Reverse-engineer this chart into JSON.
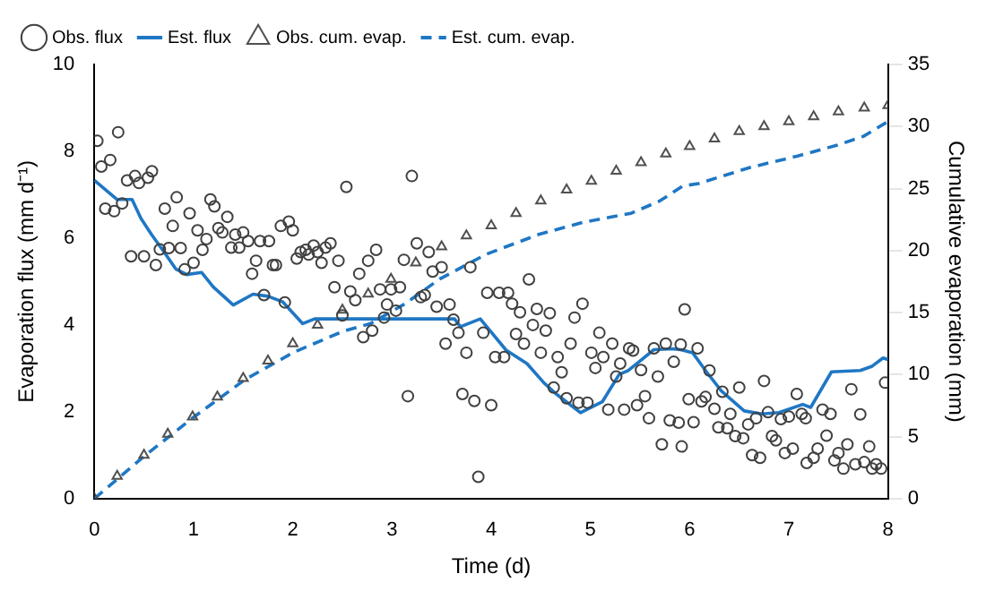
{
  "chart_data": {
    "type": "scatter",
    "xlabel": "Time (d)",
    "ylabel": "Evaporation flux (mm d⁻¹)",
    "y2label": "Cumulative evaporation (mm)",
    "xlim": [
      0,
      8
    ],
    "xticks": [
      0,
      1,
      2,
      3,
      4,
      5,
      6,
      7,
      8
    ],
    "ylim": [
      0,
      10
    ],
    "yticks": [
      0,
      2,
      4,
      6,
      8,
      10
    ],
    "y2lim": [
      0,
      35
    ],
    "y2ticks": [
      0,
      5,
      10,
      15,
      20,
      25,
      30,
      35
    ],
    "legend": "top left",
    "grid": false,
    "series": [
      {
        "name": "Obs. flux",
        "marker": "circle",
        "color": "#404040",
        "x": [
          0.03,
          0.07,
          0.16,
          0.24,
          0.11,
          0.2,
          0.28,
          0.33,
          0.41,
          0.45,
          0.54,
          0.58,
          0.37,
          0.5,
          0.62,
          0.66,
          0.71,
          0.75,
          0.79,
          0.83,
          0.87,
          0.91,
          0.96,
          1.0,
          1.04,
          1.09,
          1.13,
          1.17,
          1.21,
          1.25,
          1.29,
          1.34,
          1.38,
          1.42,
          1.46,
          1.5,
          1.55,
          1.59,
          1.63,
          1.67,
          1.71,
          1.76,
          1.8,
          1.83,
          1.88,
          1.92,
          1.96,
          2.0,
          2.04,
          2.08,
          2.13,
          2.16,
          2.21,
          2.25,
          2.29,
          2.33,
          2.38,
          2.42,
          2.46,
          2.5,
          2.54,
          2.58,
          2.63,
          2.67,
          2.71,
          2.76,
          2.8,
          2.84,
          2.88,
          2.92,
          2.95,
          2.99,
          3.04,
          3.08,
          3.12,
          3.16,
          3.2,
          3.25,
          3.29,
          3.33,
          3.37,
          3.41,
          3.45,
          3.5,
          3.54,
          3.58,
          3.62,
          3.67,
          3.71,
          3.75,
          3.79,
          3.83,
          3.87,
          3.92,
          3.96,
          4.0,
          4.04,
          4.08,
          4.13,
          4.17,
          4.21,
          4.25,
          4.29,
          4.33,
          4.38,
          4.42,
          4.46,
          4.5,
          4.55,
          4.59,
          4.63,
          4.67,
          4.71,
          4.76,
          4.8,
          4.84,
          4.88,
          4.92,
          4.97,
          5.01,
          5.05,
          5.09,
          5.13,
          5.18,
          5.22,
          5.26,
          5.3,
          5.34,
          5.39,
          5.43,
          5.47,
          5.51,
          5.55,
          5.59,
          5.64,
          5.68,
          5.72,
          5.76,
          5.8,
          5.84,
          5.89,
          5.91,
          5.92,
          5.95,
          5.99,
          6.04,
          6.08,
          6.12,
          6.16,
          6.2,
          6.25,
          6.29,
          6.33,
          6.38,
          6.41,
          6.46,
          6.5,
          6.54,
          6.59,
          6.63,
          6.67,
          6.71,
          6.75,
          6.79,
          6.83,
          6.87,
          6.92,
          6.96,
          7.0,
          7.04,
          7.08,
          7.13,
          7.17,
          7.18,
          7.25,
          7.29,
          7.34,
          7.38,
          7.42,
          7.46,
          7.5,
          7.55,
          7.59,
          7.63,
          7.67,
          7.72,
          7.76,
          7.81,
          7.84,
          7.88,
          7.93,
          7.97
        ],
        "values": [
          8.24,
          7.65,
          7.8,
          8.44,
          6.68,
          6.62,
          6.8,
          7.33,
          7.43,
          7.27,
          7.39,
          7.54,
          5.58,
          5.58,
          5.38,
          5.74,
          6.68,
          5.77,
          6.28,
          6.94,
          5.77,
          5.28,
          6.57,
          5.43,
          6.18,
          5.73,
          5.98,
          6.89,
          6.73,
          6.23,
          6.13,
          6.49,
          5.78,
          6.08,
          5.78,
          6.13,
          5.93,
          5.18,
          5.48,
          5.93,
          4.69,
          5.93,
          5.38,
          5.38,
          6.28,
          4.52,
          6.38,
          6.18,
          5.53,
          5.68,
          5.73,
          5.62,
          5.83,
          5.68,
          5.43,
          5.78,
          5.88,
          4.87,
          5.48,
          4.22,
          7.18,
          4.77,
          4.57,
          5.18,
          3.72,
          5.48,
          3.87,
          5.73,
          4.82,
          4.17,
          4.47,
          4.82,
          4.33,
          4.87,
          5.5,
          2.36,
          7.43,
          5.88,
          4.64,
          4.69,
          5.68,
          5.23,
          4.42,
          5.33,
          3.57,
          4.47,
          4.12,
          3.82,
          2.41,
          3.36,
          5.33,
          2.25,
          0.5,
          3.82,
          4.74,
          2.15,
          3.26,
          4.74,
          3.26,
          4.74,
          4.49,
          3.79,
          4.29,
          3.57,
          5.05,
          4.0,
          4.37,
          3.36,
          3.87,
          4.27,
          2.56,
          3.26,
          2.91,
          2.31,
          3.57,
          4.17,
          2.21,
          4.49,
          2.21,
          3.36,
          3.01,
          3.82,
          3.26,
          2.05,
          3.57,
          2.81,
          3.11,
          2.05,
          3.46,
          3.41,
          2.15,
          2.96,
          2.36,
          1.85,
          3.46,
          2.81,
          1.25,
          3.57,
          1.8,
          3.15,
          1.75,
          3.55,
          1.2,
          4.36,
          2.29,
          1.76,
          3.46,
          2.24,
          2.34,
          2.95,
          2.07,
          1.64,
          2.46,
          1.62,
          1.95,
          1.44,
          2.56,
          1.39,
          1.71,
          1.0,
          1.85,
          0.94,
          2.71,
          1.99,
          1.44,
          1.34,
          1.83,
          1.05,
          1.89,
          1.15,
          2.41,
          1.95,
          1.85,
          0.82,
          0.94,
          1.15,
          2.05,
          1.45,
          1.95,
          0.88,
          1.05,
          0.69,
          1.25,
          2.52,
          0.79,
          1.94,
          0.84,
          1.2,
          0.69,
          0.79,
          0.69,
          2.67
        ]
      },
      {
        "name": "Est. flux",
        "type": "line",
        "line_style": "solid",
        "color": "#1f77c4",
        "x": [
          0,
          0.12,
          0.23,
          0.38,
          0.47,
          0.58,
          0.7,
          0.82,
          0.93,
          1.08,
          1.2,
          1.4,
          1.6,
          1.75,
          1.9,
          2.1,
          2.22,
          2.92,
          3.63,
          3.69,
          3.89,
          4.15,
          4.36,
          4.53,
          4.65,
          4.9,
          5.12,
          5.29,
          5.38,
          5.5,
          5.64,
          5.82,
          5.91,
          6.03,
          6.17,
          6.32,
          6.55,
          6.73,
          6.9,
          7.14,
          7.22,
          7.43,
          7.72,
          7.84,
          7.95,
          8.0
        ],
        "values": [
          7.33,
          7.1,
          6.89,
          6.89,
          6.45,
          6.07,
          5.69,
          5.29,
          5.16,
          5.21,
          4.87,
          4.46,
          4.71,
          4.66,
          4.53,
          4.03,
          4.14,
          4.14,
          4.14,
          3.96,
          4.14,
          3.42,
          3.11,
          2.67,
          2.42,
          1.98,
          2.23,
          2.86,
          2.95,
          3.17,
          3.43,
          3.45,
          3.43,
          3.36,
          2.92,
          2.48,
          2.02,
          1.95,
          1.98,
          2.17,
          2.1,
          2.92,
          2.95,
          3.05,
          3.24,
          3.2
        ]
      },
      {
        "name": "Obs. cum. evap.",
        "marker": "triangle",
        "axis": "y2",
        "color": "#505050",
        "x": [
          0,
          0.23,
          0.5,
          0.74,
          0.99,
          1.24,
          1.5,
          1.75,
          2.0,
          2.25,
          2.5,
          2.76,
          2.99,
          3.24,
          3.5,
          3.75,
          4.0,
          4.25,
          4.5,
          4.76,
          5.01,
          5.26,
          5.51,
          5.76,
          6.0,
          6.25,
          6.5,
          6.75,
          7.0,
          7.25,
          7.5,
          7.76,
          8.0
        ],
        "values": [
          0,
          1.8,
          3.5,
          5.2,
          6.6,
          8.2,
          9.7,
          11.1,
          12.5,
          14.0,
          15.2,
          16.5,
          17.7,
          19.0,
          20.3,
          21.2,
          22.0,
          23.0,
          24.0,
          24.9,
          25.6,
          26.4,
          27.1,
          27.8,
          28.4,
          29.0,
          29.6,
          30.0,
          30.4,
          30.8,
          31.2,
          31.5,
          31.7
        ]
      },
      {
        "name": "Est. cum. evap.",
        "type": "line",
        "line_style": "dashed",
        "axis": "y2",
        "color": "#1f77c4",
        "x": [
          0,
          0.5,
          0.99,
          1.52,
          2.01,
          2.51,
          2.78,
          3.13,
          3.48,
          3.95,
          4.48,
          4.94,
          5.41,
          5.7,
          5.93,
          6.09,
          6.61,
          7.08,
          7.49,
          7.75,
          8.0
        ],
        "values": [
          0,
          3.4,
          6.5,
          9.6,
          11.8,
          13.5,
          14.1,
          15.7,
          17.7,
          19.7,
          21.3,
          22.3,
          23.0,
          24.0,
          25.2,
          25.4,
          26.7,
          27.6,
          28.5,
          29.2,
          30.4
        ]
      }
    ]
  }
}
